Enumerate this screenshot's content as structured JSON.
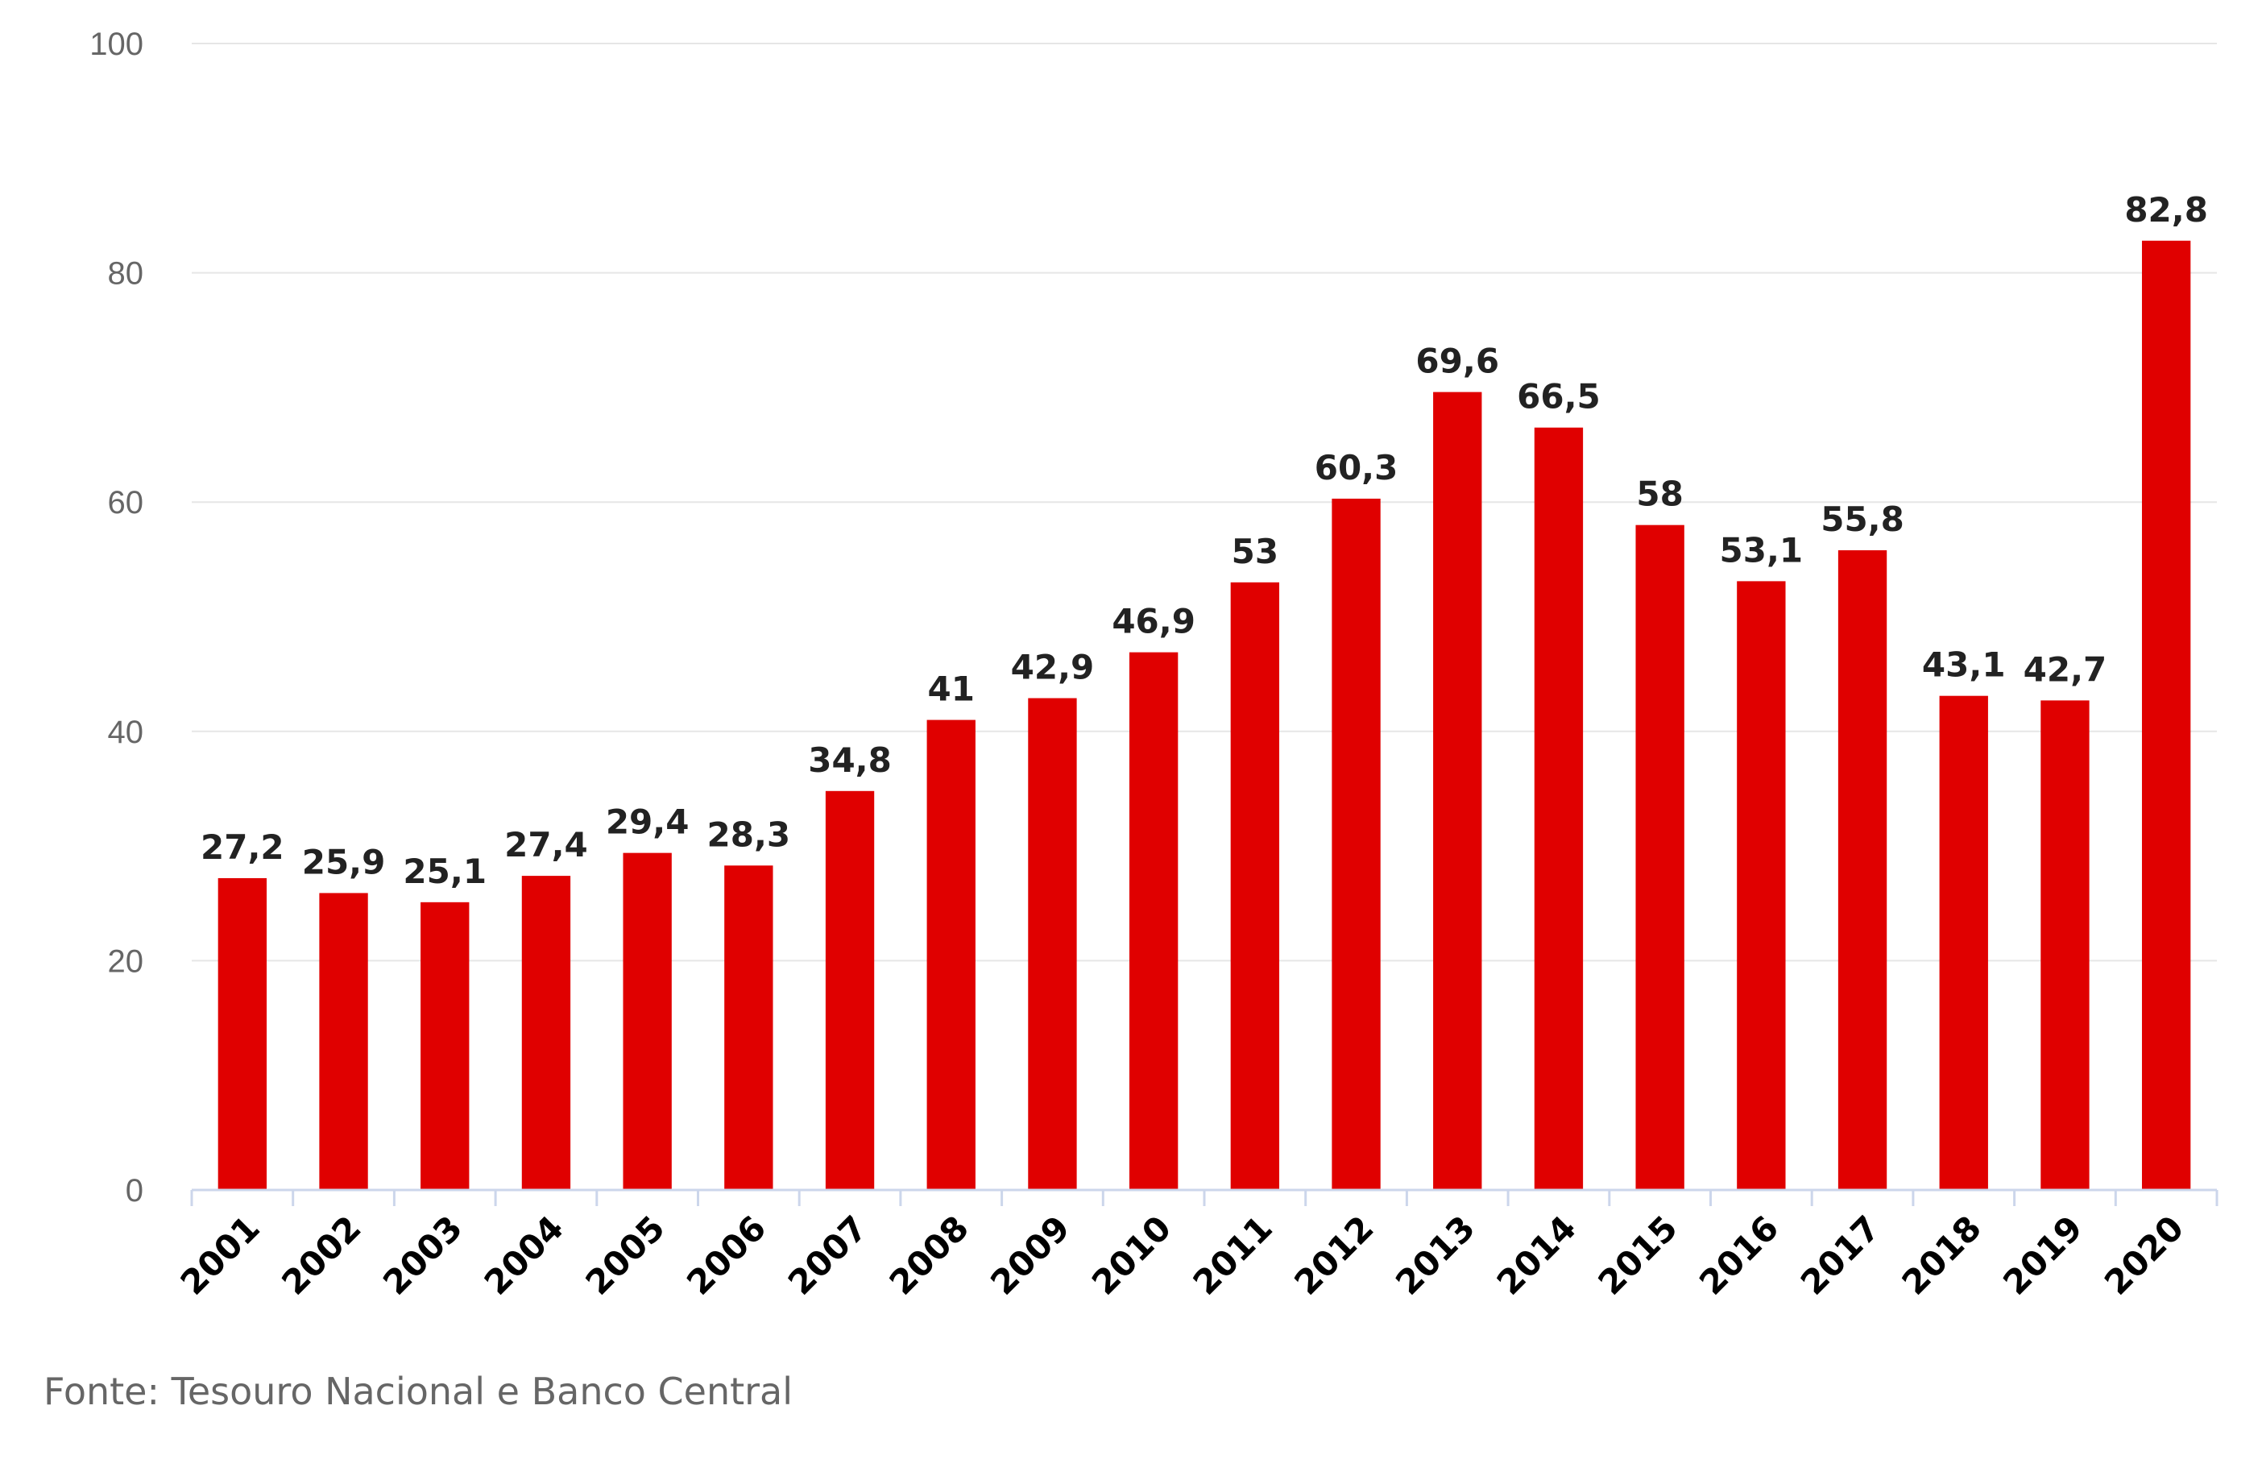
{
  "chart_data": {
    "type": "bar",
    "categories": [
      "2001",
      "2002",
      "2003",
      "2004",
      "2005",
      "2006",
      "2007",
      "2008",
      "2009",
      "2010",
      "2011",
      "2012",
      "2013",
      "2014",
      "2015",
      "2016",
      "2017",
      "2018",
      "2019",
      "2020"
    ],
    "values": [
      27.2,
      25.9,
      25.1,
      27.4,
      29.4,
      28.3,
      34.8,
      41,
      42.9,
      46.9,
      53,
      60.3,
      69.6,
      66.5,
      58,
      53.1,
      55.8,
      43.1,
      42.7,
      82.8
    ],
    "value_labels": [
      "27,2",
      "25,9",
      "25,1",
      "27,4",
      "29,4",
      "28,3",
      "34,8",
      "41",
      "42,9",
      "46,9",
      "53",
      "60,3",
      "69,6",
      "66,5",
      "58",
      "53,1",
      "55,8",
      "43,1",
      "42,7",
      "82,8"
    ],
    "title": "",
    "xlabel": "",
    "ylabel": "",
    "ylim": [
      0,
      100
    ],
    "yticks": [
      0,
      20,
      40,
      60,
      80,
      100
    ],
    "grid": true,
    "legend": "none",
    "bar_color": "#e00000",
    "grid_color": "#e6e6e6",
    "axis_color": "#ccd6eb"
  },
  "source": "Fonte: Tesouro Nacional e Banco Central"
}
